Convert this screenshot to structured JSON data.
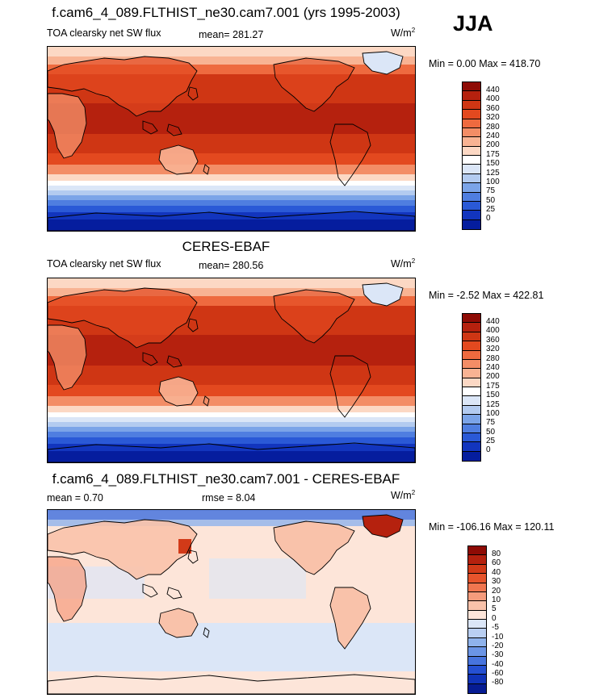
{
  "figure": {
    "season": "JJA",
    "top": {
      "title": "f.cam6_4_089.FLTHIST_ne30.cam7.001 (yrs 1995-2003)",
      "variable": "TOA clearsky net SW flux",
      "mean_label": "mean= 281.27",
      "units": "W/m",
      "units_sup": "2",
      "minmax": "Min =   0.00 Max = 418.70",
      "colorbar_labels": [
        "440",
        "400",
        "360",
        "320",
        "280",
        "240",
        "200",
        "175",
        "150",
        "125",
        "100",
        "75",
        "50",
        "25",
        "0"
      ],
      "colorbar_colors": [
        "#8e0b05",
        "#b5210e",
        "#cf3614",
        "#e3491f",
        "#ee6a3f",
        "#f38d66",
        "#f8b393",
        "#fcd8c4",
        "#ffffff",
        "#dbe6f7",
        "#b3cbf0",
        "#7ba4e8",
        "#4f7ee0",
        "#2a59d6",
        "#1235be",
        "#051d9e"
      ]
    },
    "middle": {
      "title": "CERES-EBAF",
      "variable": "TOA clearsky net SW flux",
      "mean_label": "mean= 280.56",
      "units": "W/m",
      "units_sup": "2",
      "minmax": "Min =  -2.52 Max = 422.81",
      "colorbar_labels": [
        "440",
        "400",
        "360",
        "320",
        "280",
        "240",
        "200",
        "175",
        "150",
        "125",
        "100",
        "75",
        "50",
        "25",
        "0"
      ],
      "colorbar_colors": [
        "#8e0b05",
        "#b5210e",
        "#cf3614",
        "#e3491f",
        "#ee6a3f",
        "#f38d66",
        "#f8b393",
        "#fcd8c4",
        "#ffffff",
        "#dbe6f7",
        "#b3cbf0",
        "#7ba4e8",
        "#4f7ee0",
        "#2a59d6",
        "#1235be",
        "#051d9e"
      ]
    },
    "bottom": {
      "title": "f.cam6_4_089.FLTHIST_ne30.cam7.001 - CERES-EBAF",
      "mean_label": "mean =   0.70",
      "rmse_label": "rmse =   8.04",
      "units": "W/m",
      "units_sup": "2",
      "minmax": "Min = -106.16 Max = 120.11",
      "colorbar_labels": [
        "80",
        "60",
        "40",
        "30",
        "20",
        "10",
        "5",
        "0",
        "-5",
        "-10",
        "-20",
        "-30",
        "-40",
        "-60",
        "-80"
      ],
      "colorbar_colors": [
        "#8e0b05",
        "#b5210e",
        "#d23a18",
        "#e6542c",
        "#f07650",
        "#f59b7c",
        "#f9c2aa",
        "#fde5d9",
        "#dbe6f7",
        "#b9cff2",
        "#8fb3ec",
        "#6b95e6",
        "#4774de",
        "#2550d2",
        "#1033b8",
        "#061c93"
      ]
    },
    "colors": {
      "land_outline": "#000000",
      "field_hot": "#cf3614",
      "field_cold": "#051d9e"
    }
  }
}
